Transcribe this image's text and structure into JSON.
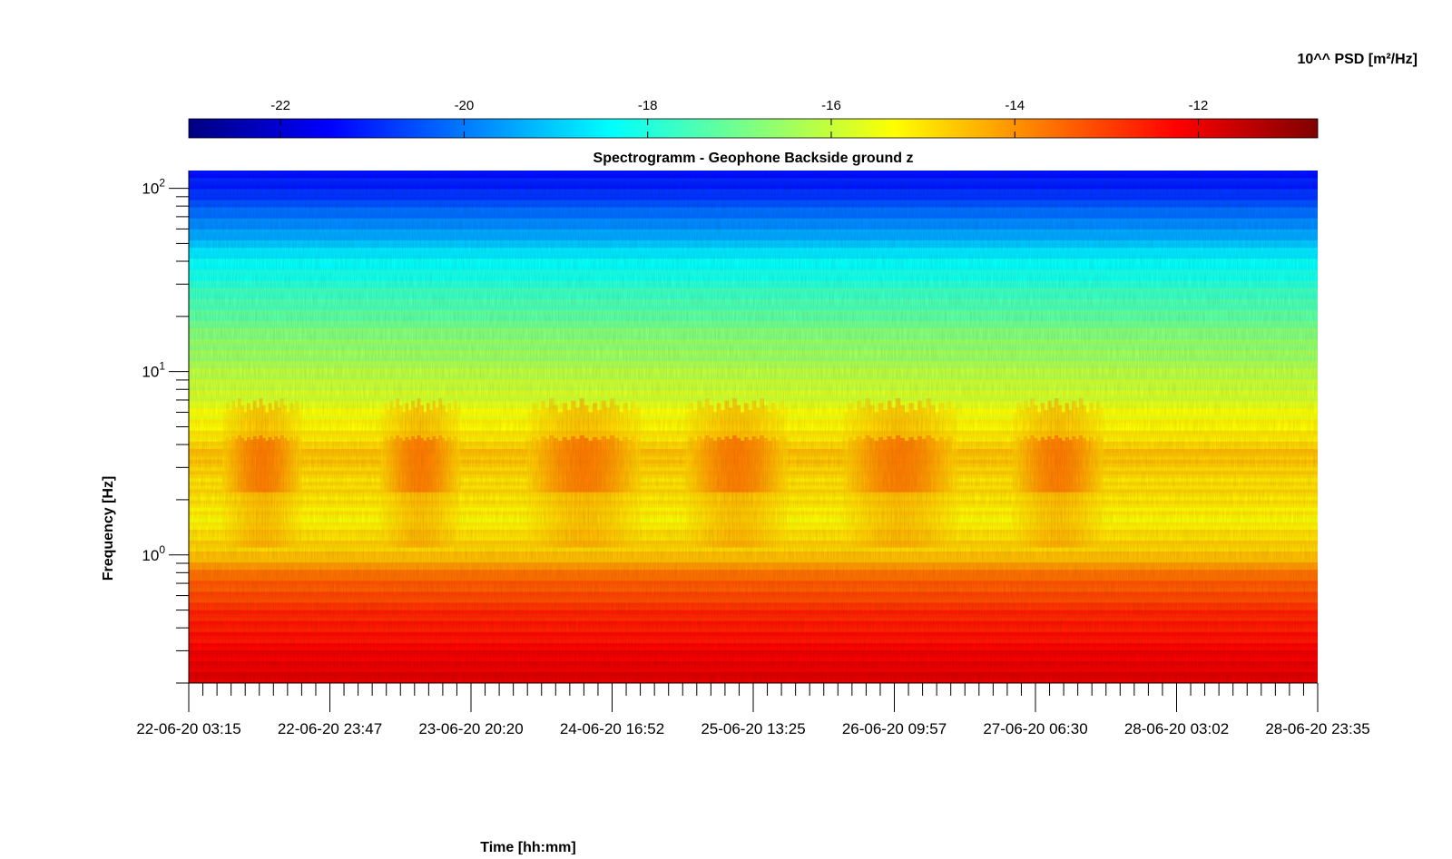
{
  "chart_data": {
    "type": "heatmap",
    "title": "Spectrogramm - Geophone Backside ground z",
    "xlabel": "Time [hh:mm]",
    "ylabel": "Frequency [Hz]",
    "y_scale": "log",
    "ylim": [
      0.2,
      125
    ],
    "x_tick_labels": [
      "22-06-20 03:15",
      "22-06-20 23:47",
      "23-06-20 20:20",
      "24-06-20 16:52",
      "25-06-20 13:25",
      "26-06-20 09:57",
      "27-06-20 06:30",
      "28-06-20 03:02",
      "28-06-20 23:35"
    ],
    "y_ticks": [
      {
        "value": 1,
        "base": "10",
        "exp": "0"
      },
      {
        "value": 10,
        "base": "10",
        "exp": "1"
      },
      {
        "value": 100,
        "base": "10",
        "exp": "2"
      }
    ],
    "colorbar": {
      "label": "10^^ PSD [m²/Hz]",
      "range": [
        -23,
        -10.7
      ],
      "ticks": [
        -22,
        -20,
        -18,
        -16,
        -14,
        -12
      ],
      "tick_labels": [
        "-22",
        "-20",
        "-18",
        "-16",
        "-14",
        "-12"
      ],
      "colormap": "jet",
      "location": "top"
    },
    "psd_profile": {
      "frequency_hz": [
        0.2,
        0.3,
        0.5,
        0.75,
        1.0,
        1.5,
        2.5,
        3.5,
        5,
        7,
        10,
        15,
        25,
        40,
        60,
        100,
        125
      ],
      "log10_psd": [
        -11.8,
        -12.2,
        -12.8,
        -13.5,
        -14.6,
        -15.2,
        -14.9,
        -14.6,
        -15.2,
        -15.7,
        -16.2,
        -16.7,
        -17.6,
        -18.4,
        -19.6,
        -21.0,
        -21.3
      ]
    },
    "activity_periods_x_fraction": [
      [
        0.03,
        0.1
      ],
      [
        0.17,
        0.24
      ],
      [
        0.3,
        0.4
      ],
      [
        0.44,
        0.53
      ],
      [
        0.58,
        0.68
      ],
      [
        0.73,
        0.81
      ]
    ]
  }
}
